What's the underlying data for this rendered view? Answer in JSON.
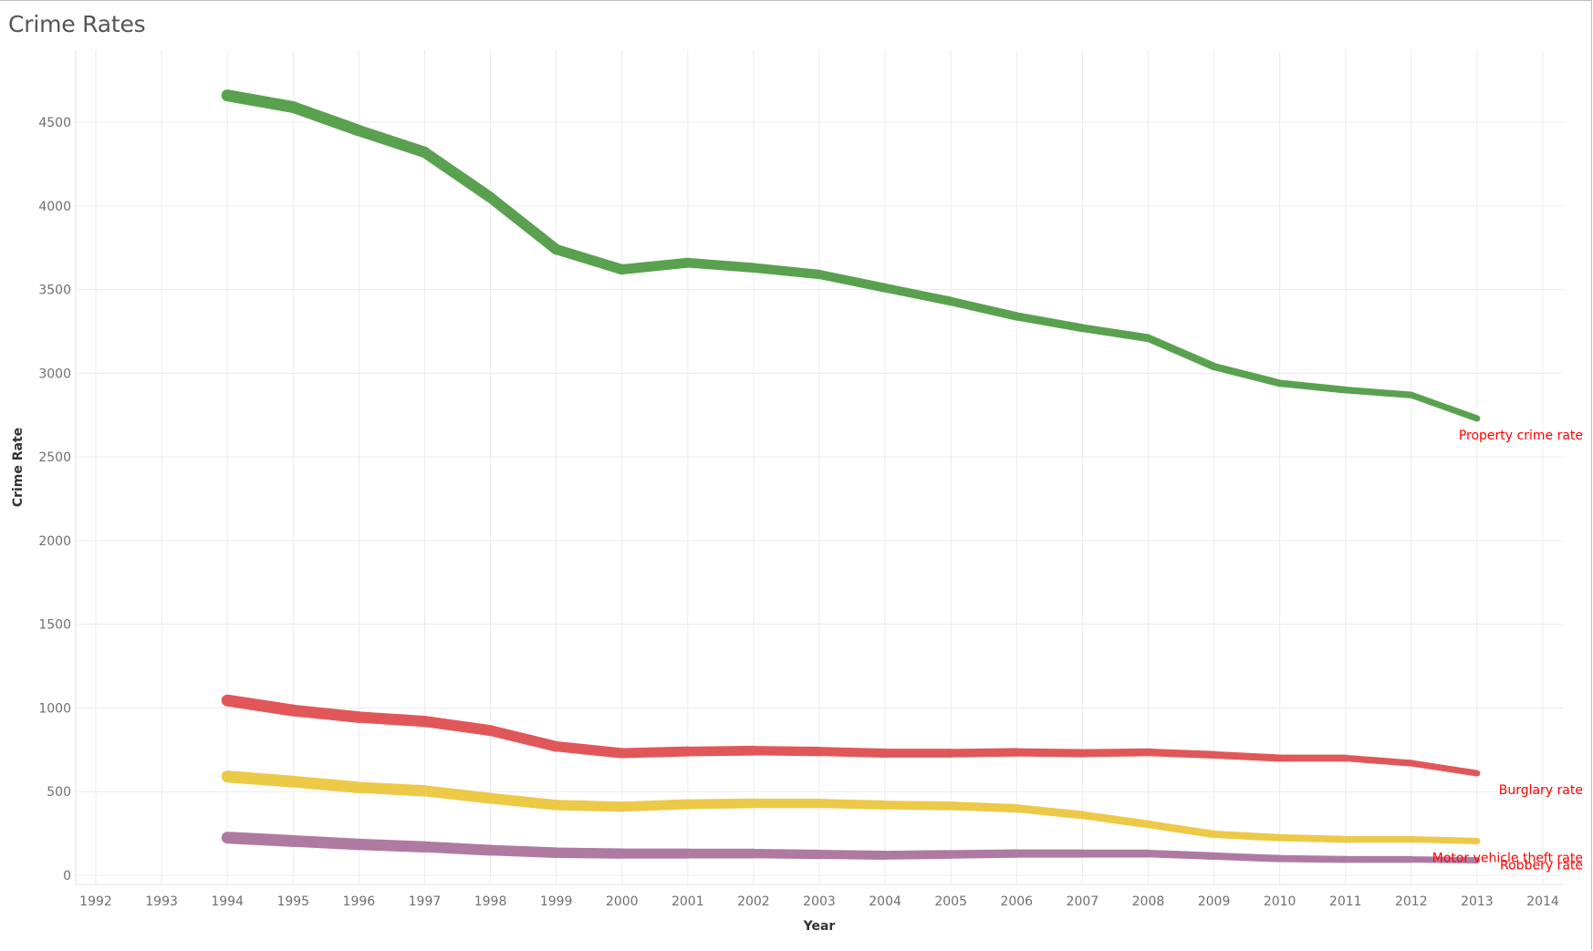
{
  "title": "Crime Rates",
  "chart_data": {
    "type": "line",
    "title": "Crime Rates",
    "xlabel": "Year",
    "ylabel": "Crime Rate",
    "xlim": [
      1992,
      2014
    ],
    "ylim": [
      -50,
      4950
    ],
    "x_ticks": [
      1992,
      1993,
      1994,
      1995,
      1996,
      1997,
      1998,
      1999,
      2000,
      2001,
      2002,
      2003,
      2004,
      2005,
      2006,
      2007,
      2008,
      2009,
      2010,
      2011,
      2012,
      2013,
      2014
    ],
    "y_ticks": [
      0,
      500,
      1000,
      1500,
      2000,
      2500,
      3000,
      3500,
      4000,
      4500
    ],
    "grid": true,
    "label_color": "#ff0000",
    "x": [
      1994,
      1995,
      1996,
      1997,
      1998,
      1999,
      2000,
      2001,
      2002,
      2003,
      2004,
      2005,
      2006,
      2007,
      2008,
      2009,
      2010,
      2011,
      2012,
      2013
    ],
    "series": [
      {
        "name": "Property crime rate",
        "color": "#59a14f",
        "values": [
          4660,
          4590,
          4450,
          4320,
          4050,
          3740,
          3620,
          3660,
          3630,
          3590,
          3510,
          3430,
          3340,
          3270,
          3210,
          3040,
          2940,
          2900,
          2870,
          2730
        ]
      },
      {
        "name": "Burglary rate",
        "color": "#e15759",
        "values": [
          1045,
          985,
          945,
          920,
          865,
          770,
          730,
          740,
          745,
          740,
          730,
          730,
          735,
          730,
          735,
          720,
          700,
          700,
          670,
          610
        ]
      },
      {
        "name": "Motor vehicle theft rate",
        "color": "#edc948",
        "values": [
          590,
          560,
          525,
          505,
          460,
          420,
          410,
          425,
          430,
          430,
          420,
          415,
          400,
          360,
          305,
          245,
          225,
          215,
          215,
          205
        ]
      },
      {
        "name": "Robbery rate",
        "color": "#af7aa1",
        "values": [
          225,
          205,
          185,
          170,
          150,
          135,
          130,
          130,
          130,
          125,
          120,
          125,
          130,
          130,
          130,
          115,
          100,
          95,
          95,
          90
        ]
      }
    ]
  }
}
